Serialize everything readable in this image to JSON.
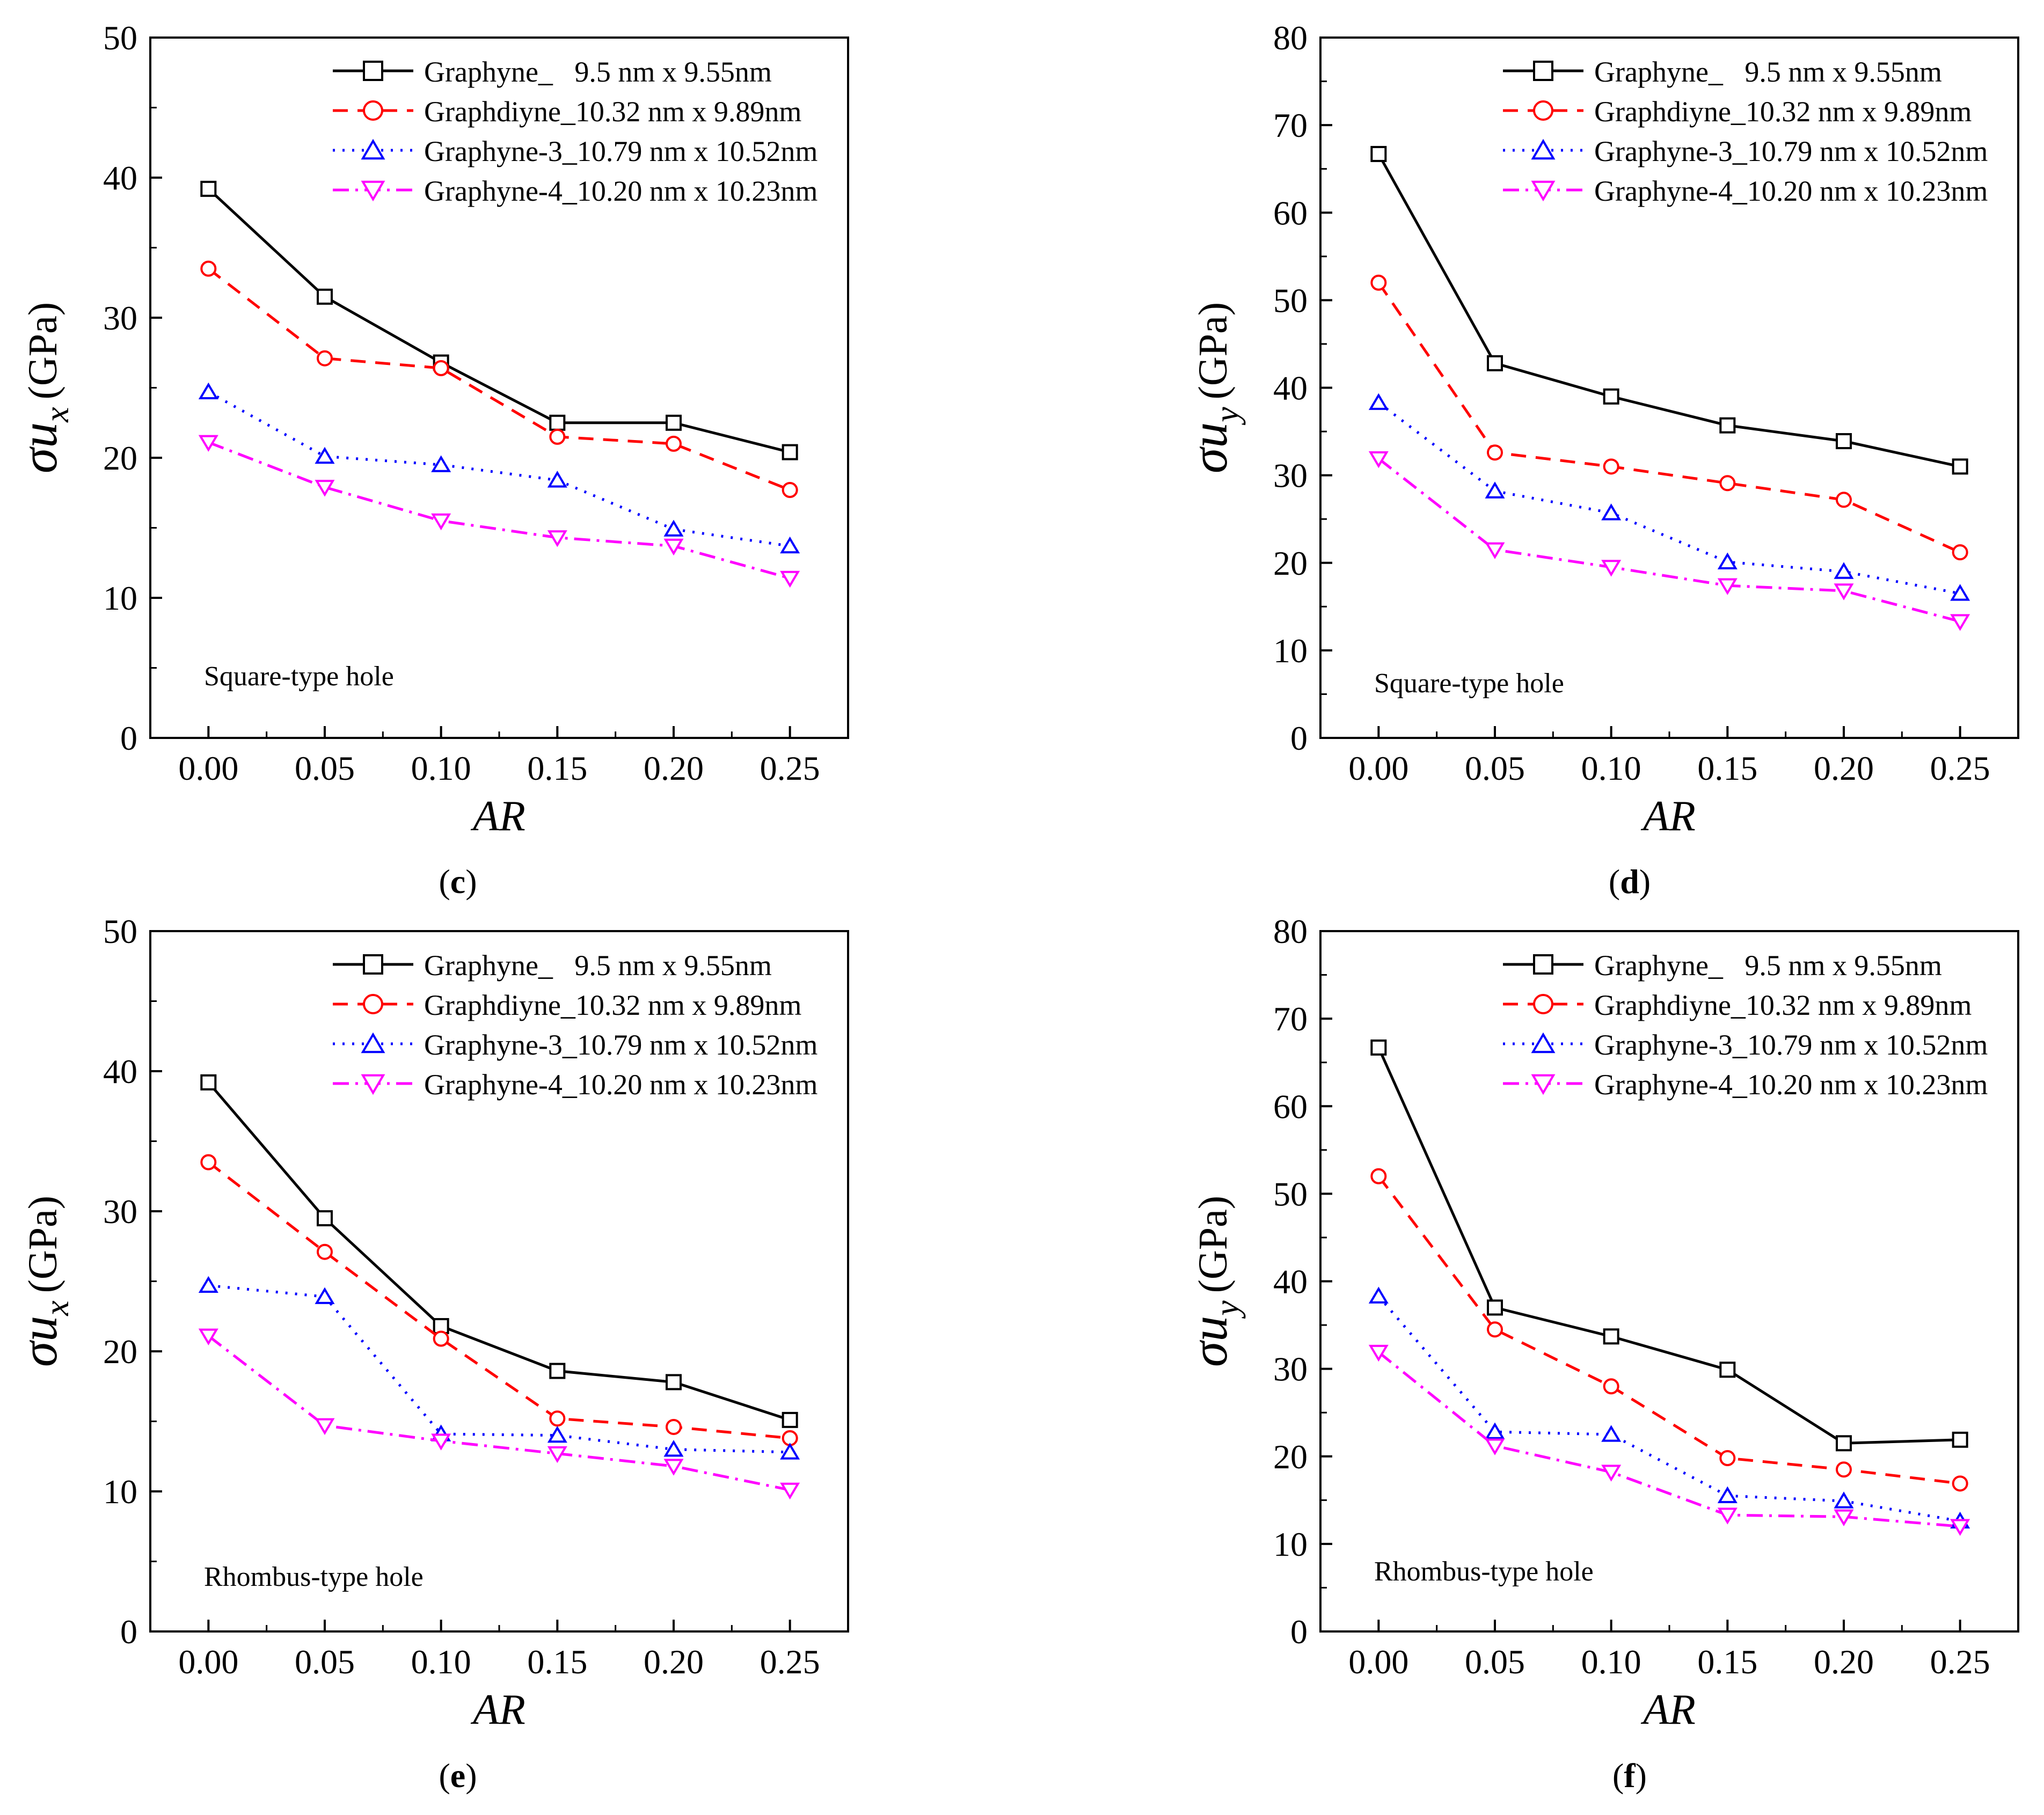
{
  "chart_data": [
    {
      "id": "top-left",
      "type": "line",
      "ylabel_sym": "σu",
      "ylabel_sub": "x",
      "ylabel_unit": "(GPa)",
      "xlabel": "AR",
      "annotation": "Square-type hole",
      "xticks": [
        "0.00",
        "0.05",
        "0.10",
        "0.15",
        "0.20",
        "0.25"
      ],
      "x": [
        0.0,
        0.05,
        0.1,
        0.15,
        0.2,
        0.25
      ],
      "ylim": [
        0,
        50
      ],
      "yticks": [
        0,
        10,
        20,
        30,
        40,
        50
      ],
      "series": [
        {
          "name": "Graphyne_   9.5 nm x 9.55nm",
          "values": [
            39.2,
            31.5,
            26.8,
            22.5,
            22.5,
            20.4
          ]
        },
        {
          "name": "Graphdiyne_10.32 nm x 9.89nm",
          "values": [
            33.5,
            27.1,
            26.4,
            21.5,
            21.0,
            17.7
          ]
        },
        {
          "name": "Graphyne-3_10.79 nm x 10.52nm",
          "values": [
            24.7,
            20.1,
            19.5,
            18.4,
            14.9,
            13.7
          ]
        },
        {
          "name": "Graphyne-4_10.20 nm x 10.23nm",
          "values": [
            21.1,
            17.9,
            15.5,
            14.3,
            13.7,
            11.4
          ]
        }
      ]
    },
    {
      "id": "top-right",
      "type": "line",
      "ylabel_sym": "σu",
      "ylabel_sub": "y",
      "ylabel_unit": "(GPa)",
      "xlabel": "AR",
      "annotation": "Square-type hole",
      "caption": "d",
      "xticks": [
        "0.00",
        "0.05",
        "0.10",
        "0.15",
        "0.20",
        "0.25"
      ],
      "x": [
        0.0,
        0.05,
        0.1,
        0.15,
        0.2,
        0.25
      ],
      "ylim": [
        0,
        80
      ],
      "yticks": [
        0,
        10,
        20,
        30,
        40,
        50,
        60,
        70,
        80
      ],
      "series": [
        {
          "name": "Graphyne_   9.5 nm x 9.55nm",
          "values": [
            66.7,
            42.8,
            39.0,
            35.7,
            33.9,
            31.0
          ]
        },
        {
          "name": "Graphdiyne_10.32 nm x 9.89nm",
          "values": [
            52.0,
            32.6,
            31.0,
            29.1,
            27.2,
            21.2
          ]
        },
        {
          "name": "Graphyne-3_10.79 nm x 10.52nm",
          "values": [
            38.3,
            28.2,
            25.7,
            20.1,
            19.0,
            16.5
          ]
        },
        {
          "name": "Graphyne-4_10.20 nm x 10.23nm",
          "values": [
            31.9,
            21.5,
            19.5,
            17.4,
            16.8,
            13.3
          ]
        }
      ]
    },
    {
      "id": "bottom-left",
      "type": "line",
      "ylabel_sym": "σu",
      "ylabel_sub": "x",
      "ylabel_unit": "(GPa)",
      "xlabel": "AR",
      "annotation": "Rhombus-type hole",
      "caption": "e",
      "xticks": [
        "0.00",
        "0.05",
        "0.10",
        "0.15",
        "0.20",
        "0.25"
      ],
      "x": [
        0.0,
        0.05,
        0.1,
        0.15,
        0.2,
        0.25
      ],
      "ylim": [
        0,
        50
      ],
      "yticks": [
        0,
        10,
        20,
        30,
        40,
        50
      ],
      "series": [
        {
          "name": "Graphyne_   9.5 nm x 9.55nm",
          "values": [
            39.2,
            29.5,
            21.8,
            18.6,
            17.8,
            15.1
          ]
        },
        {
          "name": "Graphdiyne_10.32 nm x 9.89nm",
          "values": [
            33.5,
            27.1,
            20.9,
            15.2,
            14.6,
            13.8
          ]
        },
        {
          "name": "Graphyne-3_10.79 nm x 10.52nm",
          "values": [
            24.7,
            23.9,
            14.1,
            14.0,
            13.0,
            12.8
          ]
        },
        {
          "name": "Graphyne-4_10.20 nm x 10.23nm",
          "values": [
            21.1,
            14.7,
            13.6,
            12.7,
            11.8,
            10.1
          ]
        }
      ]
    },
    {
      "id": "bottom-right",
      "type": "line",
      "ylabel_sym": "σu",
      "ylabel_sub": "y",
      "ylabel_unit": "(GPa)",
      "xlabel": "AR",
      "annotation": "Rhombus-type hole",
      "caption": "f",
      "xticks": [
        "0.00",
        "0.05",
        "0.10",
        "0.15",
        "0.20",
        "0.25"
      ],
      "x": [
        0.0,
        0.05,
        0.1,
        0.15,
        0.2,
        0.25
      ],
      "ylim": [
        0,
        80
      ],
      "yticks": [
        0,
        10,
        20,
        30,
        40,
        50,
        60,
        70,
        80
      ],
      "series": [
        {
          "name": "Graphyne_   9.5 nm x 9.55nm",
          "values": [
            66.7,
            37.0,
            33.7,
            29.9,
            21.5,
            21.9
          ]
        },
        {
          "name": "Graphdiyne_10.32 nm x 9.89nm",
          "values": [
            52.0,
            34.5,
            28.0,
            19.8,
            18.5,
            16.9
          ]
        },
        {
          "name": "Graphyne-3_10.79 nm x 10.52nm",
          "values": [
            38.3,
            22.8,
            22.5,
            15.5,
            14.9,
            12.6
          ]
        },
        {
          "name": "Graphyne-4_10.20 nm x 10.23nm",
          "values": [
            31.9,
            21.2,
            18.2,
            13.3,
            13.1,
            12.0
          ]
        }
      ]
    }
  ],
  "captions": {
    "c": "c",
    "d": "d",
    "e": "e",
    "f": "f"
  },
  "colors": {
    "graphyne": "#000000",
    "graphdiyne": "#ff0000",
    "graphyne3": "#0000ff",
    "graphyne4": "#ff00ff"
  }
}
